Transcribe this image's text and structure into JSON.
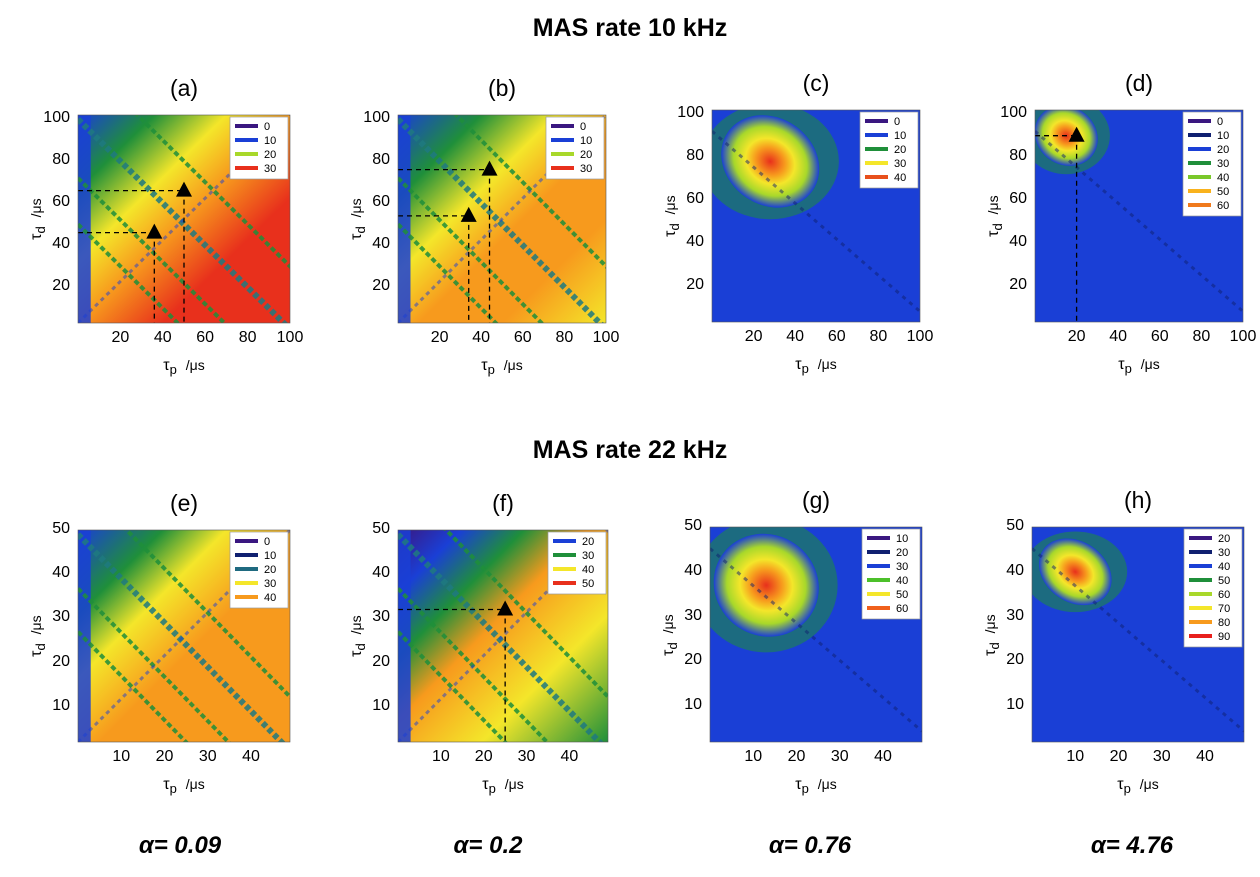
{
  "titles": {
    "top": "MAS rate 10 kHz",
    "bottom": "MAS rate 22 kHz"
  },
  "axis_labels": {
    "x_symbol": "τ",
    "x_sub": "p",
    "x_unit": "/μs",
    "y_symbol": "τ",
    "y_sub": "d",
    "y_unit": "/μs"
  },
  "alphas": [
    "α= 0.09",
    "α= 0.2",
    "α= 0.76",
    "α= 4.76"
  ],
  "colors": {
    "indigo": "#3a1780",
    "navy": "#102070",
    "blue": "#1a3fd6",
    "teal": "#1f7a80",
    "green": "#1f8f3a",
    "lime": "#a8d82a",
    "yellow": "#f4e62a",
    "orange": "#f79a1d",
    "red": "#e8301c",
    "dashed": "#000000"
  },
  "chart_data": [
    {
      "id": "a",
      "label": "(a)",
      "type": "heatmap",
      "xlim": [
        0,
        100
      ],
      "ylim": [
        3,
        102
      ],
      "xticks": [
        "20",
        "40",
        "60",
        "80",
        "100"
      ],
      "xtick_vals": [
        20,
        40,
        60,
        80,
        100
      ],
      "yticks": [
        "20",
        "40",
        "60",
        "80",
        "100"
      ],
      "ytick_vals": [
        20,
        40,
        60,
        80,
        100
      ],
      "legend": [
        {
          "label": "0",
          "color": "#3a1780"
        },
        {
          "label": "10",
          "color": "#1a3fd6"
        },
        {
          "label": "20",
          "color": "#a8d82a"
        },
        {
          "label": "30",
          "color": "#e8301c"
        }
      ],
      "markers": [
        {
          "x": 36,
          "y": 46
        },
        {
          "x": 50,
          "y": 66
        }
      ],
      "pattern": "diag-high"
    },
    {
      "id": "b",
      "label": "(b)",
      "type": "heatmap",
      "xlim": [
        0,
        100
      ],
      "ylim": [
        3,
        102
      ],
      "xticks": [
        "20",
        "40",
        "60",
        "80",
        "100"
      ],
      "xtick_vals": [
        20,
        40,
        60,
        80,
        100
      ],
      "yticks": [
        "20",
        "40",
        "60",
        "80",
        "100"
      ],
      "ytick_vals": [
        20,
        40,
        60,
        80,
        100
      ],
      "legend": [
        {
          "label": "0",
          "color": "#3a1780"
        },
        {
          "label": "10",
          "color": "#1a3fd6"
        },
        {
          "label": "20",
          "color": "#a8d82a"
        },
        {
          "label": "30",
          "color": "#e8301c"
        }
      ],
      "markers": [
        {
          "x": 34,
          "y": 54
        },
        {
          "x": 44,
          "y": 76
        }
      ],
      "pattern": "diag-mid"
    },
    {
      "id": "c",
      "label": "(c)",
      "type": "heatmap",
      "xlim": [
        0,
        100
      ],
      "ylim": [
        3,
        102
      ],
      "xticks": [
        "20",
        "40",
        "60",
        "80",
        "100"
      ],
      "xtick_vals": [
        20,
        40,
        60,
        80,
        100
      ],
      "yticks": [
        "20",
        "40",
        "60",
        "80",
        "100"
      ],
      "ytick_vals": [
        20,
        40,
        60,
        80,
        100
      ],
      "legend": [
        {
          "label": "0",
          "color": "#3a1780"
        },
        {
          "label": "10",
          "color": "#1a3fd6"
        },
        {
          "label": "20",
          "color": "#1f8f3a"
        },
        {
          "label": "30",
          "color": "#f4e62a"
        },
        {
          "label": "40",
          "color": "#e8501c"
        }
      ],
      "markers": [],
      "pattern": "spot",
      "spot": {
        "x": 28,
        "y": 78,
        "rx": 22,
        "ry": 18
      }
    },
    {
      "id": "d",
      "label": "(d)",
      "type": "heatmap",
      "xlim": [
        0,
        100
      ],
      "ylim": [
        3,
        102
      ],
      "xticks": [
        "20",
        "40",
        "60",
        "80",
        "100"
      ],
      "xtick_vals": [
        20,
        40,
        60,
        80,
        100
      ],
      "yticks": [
        "20",
        "40",
        "60",
        "80",
        "100"
      ],
      "ytick_vals": [
        20,
        40,
        60,
        80,
        100
      ],
      "legend": [
        {
          "label": "0",
          "color": "#3a1780"
        },
        {
          "label": "10",
          "color": "#102070"
        },
        {
          "label": "20",
          "color": "#1a3fd6"
        },
        {
          "label": "30",
          "color": "#1f8f3a"
        },
        {
          "label": "40",
          "color": "#7ac82a"
        },
        {
          "label": "50",
          "color": "#f9b21d"
        },
        {
          "label": "60",
          "color": "#f07a1c"
        }
      ],
      "markers": [
        {
          "x": 20,
          "y": 90
        }
      ],
      "pattern": "spot",
      "spot": {
        "x": 15,
        "y": 90,
        "rx": 14,
        "ry": 12
      }
    },
    {
      "id": "e",
      "label": "(e)",
      "type": "heatmap",
      "xlim": [
        0,
        49
      ],
      "ylim": [
        2,
        50
      ],
      "xticks": [
        "10",
        "20",
        "30",
        "40"
      ],
      "xtick_vals": [
        10,
        20,
        30,
        40
      ],
      "yticks": [
        "10",
        "20",
        "30",
        "40",
        "50"
      ],
      "ytick_vals": [
        10,
        20,
        30,
        40,
        50
      ],
      "legend": [
        {
          "label": "0",
          "color": "#3a1780"
        },
        {
          "label": "10",
          "color": "#102070"
        },
        {
          "label": "20",
          "color": "#1f6a80"
        },
        {
          "label": "30",
          "color": "#f4e62a"
        },
        {
          "label": "40",
          "color": "#f79a1d"
        }
      ],
      "markers": [],
      "pattern": "diag-orange"
    },
    {
      "id": "f",
      "label": "(f)",
      "type": "heatmap",
      "xlim": [
        0,
        49
      ],
      "ylim": [
        2,
        50
      ],
      "xticks": [
        "10",
        "20",
        "30",
        "40"
      ],
      "xtick_vals": [
        10,
        20,
        30,
        40
      ],
      "yticks": [
        "10",
        "20",
        "30",
        "40",
        "50"
      ],
      "ytick_vals": [
        10,
        20,
        30,
        40,
        50
      ],
      "legend": [
        {
          "label": "20",
          "color": "#1a3fd6"
        },
        {
          "label": "30",
          "color": "#1f8f3a"
        },
        {
          "label": "40",
          "color": "#f4e62a"
        },
        {
          "label": "50",
          "color": "#e8301c"
        }
      ],
      "markers": [
        {
          "x": 25,
          "y": 32
        }
      ],
      "pattern": "diag-orange2"
    },
    {
      "id": "g",
      "label": "(g)",
      "type": "heatmap",
      "xlim": [
        0,
        49
      ],
      "ylim": [
        2,
        50
      ],
      "xticks": [
        "10",
        "20",
        "30",
        "40"
      ],
      "xtick_vals": [
        10,
        20,
        30,
        40
      ],
      "yticks": [
        "10",
        "20",
        "30",
        "40",
        "50"
      ],
      "ytick_vals": [
        10,
        20,
        30,
        40,
        50
      ],
      "legend": [
        {
          "label": "10",
          "color": "#3a1780"
        },
        {
          "label": "20",
          "color": "#102070"
        },
        {
          "label": "30",
          "color": "#1a3fd6"
        },
        {
          "label": "40",
          "color": "#4cc02a"
        },
        {
          "label": "50",
          "color": "#f4e62a"
        },
        {
          "label": "60",
          "color": "#f0601c"
        }
      ],
      "markers": [],
      "pattern": "spot",
      "spot": {
        "x": 13,
        "y": 37,
        "rx": 11,
        "ry": 10
      }
    },
    {
      "id": "h",
      "label": "(h)",
      "type": "heatmap",
      "xlim": [
        0,
        49
      ],
      "ylim": [
        2,
        50
      ],
      "xticks": [
        "10",
        "20",
        "30",
        "40"
      ],
      "xtick_vals": [
        10,
        20,
        30,
        40
      ],
      "yticks": [
        "10",
        "20",
        "30",
        "40",
        "50"
      ],
      "ytick_vals": [
        10,
        20,
        30,
        40,
        50
      ],
      "legend": [
        {
          "label": "20",
          "color": "#3a1780"
        },
        {
          "label": "30",
          "color": "#102070"
        },
        {
          "label": "40",
          "color": "#1a3fd6"
        },
        {
          "label": "50",
          "color": "#1f8f3a"
        },
        {
          "label": "60",
          "color": "#a8d82a"
        },
        {
          "label": "70",
          "color": "#f4e62a"
        },
        {
          "label": "80",
          "color": "#f79a1d"
        },
        {
          "label": "90",
          "color": "#e8201c"
        }
      ],
      "markers": [],
      "pattern": "spot",
      "spot": {
        "x": 10,
        "y": 40,
        "rx": 8,
        "ry": 6
      }
    }
  ]
}
